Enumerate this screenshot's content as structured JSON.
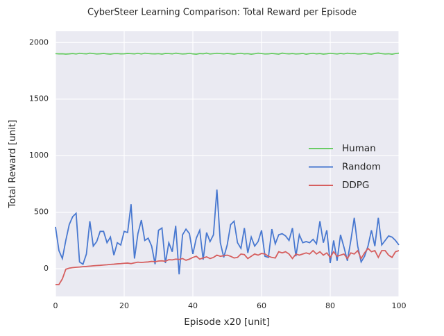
{
  "chart_data": {
    "type": "line",
    "title": "CyberSteer Learning Comparison: Total Reward per Episode",
    "xlabel": "Episode x20 [unit]",
    "ylabel": "Total Reward [unit]",
    "x": [
      0,
      1,
      2,
      3,
      4,
      5,
      6,
      7,
      8,
      9,
      10,
      11,
      12,
      13,
      14,
      15,
      16,
      17,
      18,
      19,
      20,
      21,
      22,
      23,
      24,
      25,
      26,
      27,
      28,
      29,
      30,
      31,
      32,
      33,
      34,
      35,
      36,
      37,
      38,
      39,
      40,
      41,
      42,
      43,
      44,
      45,
      46,
      47,
      48,
      49,
      50,
      51,
      52,
      53,
      54,
      55,
      56,
      57,
      58,
      59,
      60,
      61,
      62,
      63,
      64,
      65,
      66,
      67,
      68,
      69,
      70,
      71,
      72,
      73,
      74,
      75,
      76,
      77,
      78,
      79,
      80,
      81,
      82,
      83,
      84,
      85,
      86,
      87,
      88,
      89,
      90,
      91,
      92,
      93,
      94,
      95,
      96,
      97,
      98,
      99,
      100
    ],
    "series": [
      {
        "name": "Human",
        "color": "#6acc65",
        "values": [
          1902,
          1900,
          1901,
          1898,
          1900,
          1903,
          1899,
          1905,
          1902,
          1900,
          1906,
          1903,
          1899,
          1901,
          1904,
          1900,
          1898,
          1902,
          1903,
          1900,
          1901,
          1904,
          1902,
          1900,
          1905,
          1899,
          1906,
          1903,
          1901,
          1900,
          1902,
          1898,
          1904,
          1903,
          1900,
          1906,
          1902,
          1899,
          1901,
          1905,
          1900,
          1897,
          1903,
          1901,
          1906,
          1899,
          1902,
          1905,
          1903,
          1900,
          1904,
          1901,
          1898,
          1903,
          1905,
          1900,
          1902,
          1897,
          1901,
          1906,
          1903,
          1899,
          1900,
          1904,
          1901,
          1898,
          1906,
          1902,
          1900,
          1903,
          1899,
          1901,
          1904,
          1897,
          1902,
          1905,
          1900,
          1903,
          1898,
          1901,
          1905,
          1902,
          1899,
          1904,
          1900,
          1906,
          1902,
          1903,
          1899,
          1901,
          1905,
          1900,
          1898,
          1904,
          1907,
          1902,
          1899,
          1901,
          1897,
          1903,
          1906
        ]
      },
      {
        "name": "Random",
        "color": "#4878d0",
        "values": [
          370,
          160,
          90,
          250,
          390,
          460,
          490,
          60,
          40,
          130,
          420,
          200,
          240,
          330,
          330,
          230,
          280,
          120,
          230,
          210,
          330,
          320,
          570,
          90,
          310,
          430,
          250,
          270,
          200,
          40,
          340,
          360,
          50,
          230,
          150,
          380,
          -50,
          300,
          350,
          310,
          130,
          270,
          340,
          80,
          320,
          240,
          300,
          700,
          230,
          100,
          210,
          390,
          420,
          230,
          180,
          360,
          140,
          280,
          200,
          240,
          340,
          110,
          100,
          350,
          220,
          300,
          310,
          290,
          250,
          360,
          110,
          300,
          230,
          240,
          230,
          260,
          220,
          420,
          230,
          340,
          50,
          250,
          70,
          300,
          190,
          70,
          250,
          450,
          200,
          60,
          110,
          200,
          340,
          200,
          450,
          210,
          250,
          290,
          280,
          250,
          210
        ]
      },
      {
        "name": "DDPG",
        "color": "#d65f5f",
        "values": [
          -140,
          -140,
          -90,
          -5,
          5,
          10,
          13,
          15,
          18,
          20,
          23,
          26,
          28,
          30,
          33,
          35,
          38,
          40,
          43,
          45,
          48,
          50,
          45,
          52,
          58,
          55,
          58,
          60,
          65,
          62,
          68,
          70,
          66,
          80,
          78,
          85,
          82,
          90,
          75,
          85,
          100,
          110,
          85,
          95,
          105,
          90,
          100,
          120,
          110,
          115,
          120,
          110,
          95,
          100,
          130,
          125,
          90,
          110,
          130,
          120,
          135,
          130,
          110,
          100,
          95,
          150,
          140,
          150,
          130,
          90,
          130,
          120,
          130,
          140,
          130,
          160,
          130,
          150,
          120,
          140,
          100,
          150,
          110,
          120,
          130,
          90,
          140,
          130,
          160,
          90,
          140,
          180,
          150,
          160,
          100,
          160,
          160,
          120,
          100,
          150,
          160
        ]
      }
    ],
    "xlim": [
      0,
      100
    ],
    "xticks": [
      0,
      20,
      40,
      60,
      80,
      100
    ],
    "ylim": [
      -245,
      2100
    ],
    "yticks": [
      0,
      500,
      1000,
      1500,
      2000
    ],
    "grid": true,
    "legend": "center right"
  }
}
